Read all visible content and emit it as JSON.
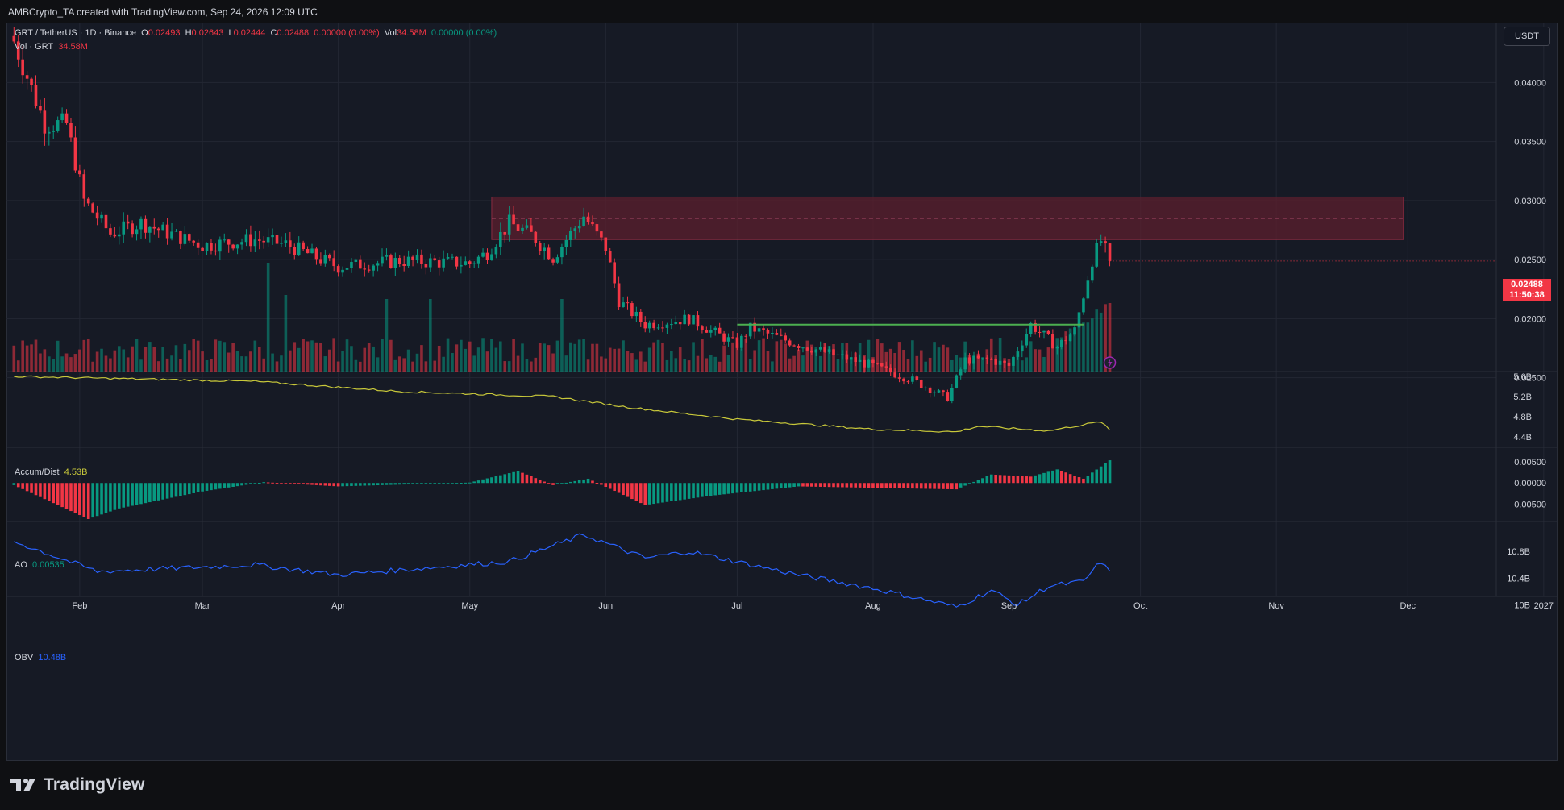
{
  "header": {
    "attribution": "AMBCrypto_TA created with TradingView.com, Sep 24, 2026 12:09 UTC"
  },
  "legend": {
    "symbol": "GRT / TetherUS · 1D · Binance",
    "o_label": "O",
    "o": "0.02493",
    "h_label": "H",
    "h": "0.02643",
    "l_label": "L",
    "l": "0.02444",
    "c_label": "C",
    "c": "0.02488",
    "change": "0.00000 (0.00%)",
    "vol_label": "Vol",
    "vol": "34.58M",
    "vol_change": "0.00000 (0.00%)",
    "vol_row_label": "Vol · GRT",
    "vol_row_value": "34.58M"
  },
  "currency_button": "USDT",
  "last_price": {
    "price": "0.02488",
    "countdown": "11:50:38"
  },
  "indicators": {
    "ad": {
      "label": "Accum/Dist",
      "value": "4.53B"
    },
    "ao": {
      "label": "AO",
      "value": "0.00535"
    },
    "obv": {
      "label": "OBV",
      "value": "10.48B"
    }
  },
  "colors": {
    "up": "#089981",
    "down": "#f23645",
    "ad_line": "#c8c83a",
    "obv_line": "#2962ff",
    "zone": "#5c1f2e",
    "support": "#4caf50",
    "background": "#161a25"
  },
  "brand": "TradingView",
  "chart_data": [
    {
      "type": "candlestick",
      "title": "GRT / TetherUS · 1D · Binance",
      "x_ticks": [
        "Feb",
        "Mar",
        "Apr",
        "May",
        "Jun",
        "Jul",
        "Aug",
        "Sep",
        "Oct",
        "Nov",
        "Dec",
        "2027"
      ],
      "y_ticks": [
        "0.04000",
        "0.03500",
        "0.03000",
        "0.02500",
        "0.02000",
        "0.01500"
      ],
      "ylim": [
        0.0107,
        0.0418
      ],
      "close_keypoints": [
        {
          "date": "Jan 17",
          "close": 0.0435
        },
        {
          "date": "Jan 20",
          "close": 0.0405
        },
        {
          "date": "Jan 24",
          "close": 0.0365
        },
        {
          "date": "Jan 29",
          "close": 0.0365
        },
        {
          "date": "Feb 2",
          "close": 0.03
        },
        {
          "date": "Feb 8",
          "close": 0.0272
        },
        {
          "date": "Feb 15",
          "close": 0.0281
        },
        {
          "date": "Mar 1",
          "close": 0.0262
        },
        {
          "date": "Mar 13",
          "close": 0.0267
        },
        {
          "date": "Mar 20",
          "close": 0.0263
        },
        {
          "date": "Apr 1",
          "close": 0.0244
        },
        {
          "date": "Apr 15",
          "close": 0.0249
        },
        {
          "date": "May 1",
          "close": 0.0247
        },
        {
          "date": "May 5",
          "close": 0.0256
        },
        {
          "date": "May 10",
          "close": 0.0281
        },
        {
          "date": "May 15",
          "close": 0.0271
        },
        {
          "date": "May 20",
          "close": 0.0252
        },
        {
          "date": "May 27",
          "close": 0.0287
        },
        {
          "date": "Jun 1",
          "close": 0.026
        },
        {
          "date": "Jun 4",
          "close": 0.0215
        },
        {
          "date": "Jun 10",
          "close": 0.0195
        },
        {
          "date": "Jun 20",
          "close": 0.02
        },
        {
          "date": "Jul 1",
          "close": 0.0178
        },
        {
          "date": "Jul 4",
          "close": 0.0192
        },
        {
          "date": "Jul 15",
          "close": 0.0178
        },
        {
          "date": "Aug 1",
          "close": 0.016
        },
        {
          "date": "Aug 10",
          "close": 0.0148
        },
        {
          "date": "Aug 18",
          "close": 0.0133
        },
        {
          "date": "Aug 22",
          "close": 0.0165
        },
        {
          "date": "Aug 28",
          "close": 0.0165
        },
        {
          "date": "Sep 1",
          "close": 0.016
        },
        {
          "date": "Sep 6",
          "close": 0.0195
        },
        {
          "date": "Sep 12",
          "close": 0.0176
        },
        {
          "date": "Sep 16",
          "close": 0.019
        },
        {
          "date": "Sep 20",
          "close": 0.025
        },
        {
          "date": "Sep 22",
          "close": 0.0266
        },
        {
          "date": "Sep 24",
          "close": 0.02488
        }
      ],
      "resistance_zone": {
        "low": 0.0267,
        "high": 0.0303,
        "mid": 0.0285,
        "from": "May 6",
        "to": "Nov 30"
      },
      "support_line": {
        "value": 0.0195,
        "from": "Jul 1",
        "to": "Sep 18"
      },
      "volume": {
        "label": "Vol · GRT",
        "last": "34.58M"
      }
    },
    {
      "type": "line",
      "name": "Accum/Dist",
      "last": "4.53B",
      "y_ticks": [
        "5.6B",
        "5.2B",
        "4.8B",
        "4.4B"
      ],
      "ylim": [
        4.3,
        5.6
      ],
      "keypoints": [
        {
          "date": "Jan 17",
          "value": 5.6
        },
        {
          "date": "Mar 13",
          "value": 5.5
        },
        {
          "date": "Apr 15",
          "value": 5.3
        },
        {
          "date": "May 20",
          "value": 5.2
        },
        {
          "date": "Jun 5",
          "value": 5.0
        },
        {
          "date": "Jun 15",
          "value": 4.9
        },
        {
          "date": "Jul 1",
          "value": 4.75
        },
        {
          "date": "Aug 1",
          "value": 4.55
        },
        {
          "date": "Aug 20",
          "value": 4.5
        },
        {
          "date": "Aug 25",
          "value": 4.61
        },
        {
          "date": "Sep 10",
          "value": 4.52
        },
        {
          "date": "Sep 22",
          "value": 4.7
        },
        {
          "date": "Sep 24",
          "value": 4.53
        }
      ]
    },
    {
      "type": "histogram",
      "name": "AO",
      "last": "0.00535",
      "y_ticks": [
        "0.00500",
        "0.00000",
        "-0.00500"
      ],
      "ylim": [
        -0.0095,
        0.0065
      ],
      "keypoints": [
        {
          "date": "Jan 17",
          "value": -0.0005
        },
        {
          "date": "Feb 3",
          "value": -0.0085
        },
        {
          "date": "Feb 10",
          "value": -0.006
        },
        {
          "date": "Mar 1",
          "value": -0.002
        },
        {
          "date": "Mar 15",
          "value": 0.0002
        },
        {
          "date": "Apr 1",
          "value": -0.0008
        },
        {
          "date": "May 1",
          "value": 0.0001
        },
        {
          "date": "May 12",
          "value": 0.0028
        },
        {
          "date": "May 20",
          "value": -0.0005
        },
        {
          "date": "May 28",
          "value": 0.001
        },
        {
          "date": "Jun 10",
          "value": -0.0052
        },
        {
          "date": "Jun 25",
          "value": -0.003
        },
        {
          "date": "Jul 15",
          "value": -0.0008
        },
        {
          "date": "Aug 20",
          "value": -0.0015
        },
        {
          "date": "Aug 28",
          "value": 0.002
        },
        {
          "date": "Sep 6",
          "value": 0.0015
        },
        {
          "date": "Sep 12",
          "value": 0.0032
        },
        {
          "date": "Sep 18",
          "value": 0.001
        },
        {
          "date": "Sep 24",
          "value": 0.00535
        }
      ]
    },
    {
      "type": "line",
      "name": "OBV",
      "last": "10.48B",
      "y_ticks": [
        "10.8B",
        "10.4B",
        "10B"
      ],
      "ylim": [
        9.9,
        11.2
      ],
      "keypoints": [
        {
          "date": "Jan 17",
          "value": 10.95
        },
        {
          "date": "Feb 5",
          "value": 10.5
        },
        {
          "date": "Mar 13",
          "value": 10.6
        },
        {
          "date": "Apr 1",
          "value": 10.45
        },
        {
          "date": "May 10",
          "value": 10.65
        },
        {
          "date": "May 27",
          "value": 11.05
        },
        {
          "date": "Jun 10",
          "value": 10.7
        },
        {
          "date": "Jun 20",
          "value": 10.8
        },
        {
          "date": "Jul 15",
          "value": 10.45
        },
        {
          "date": "Aug 1",
          "value": 10.25
        },
        {
          "date": "Aug 20",
          "value": 9.97
        },
        {
          "date": "Aug 28",
          "value": 10.22
        },
        {
          "date": "Sep 3",
          "value": 10.0
        },
        {
          "date": "Sep 10",
          "value": 10.28
        },
        {
          "date": "Sep 18",
          "value": 10.35
        },
        {
          "date": "Sep 22",
          "value": 10.65
        },
        {
          "date": "Sep 24",
          "value": 10.48
        }
      ]
    }
  ]
}
